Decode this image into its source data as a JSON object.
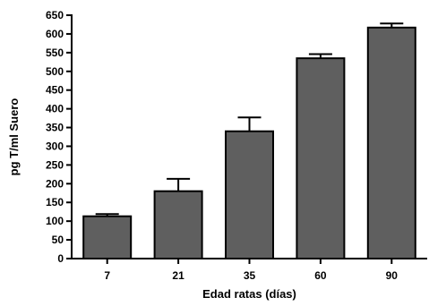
{
  "chart_data": {
    "type": "bar",
    "title": "",
    "xlabel": "Edad ratas (días)",
    "ylabel": "pg T/ml Suero",
    "ylim": [
      0,
      650
    ],
    "yticks": [
      0,
      50,
      100,
      150,
      200,
      250,
      300,
      350,
      400,
      450,
      500,
      550,
      600,
      650
    ],
    "categories": [
      "7",
      "21",
      "35",
      "60",
      "90"
    ],
    "values": [
      113,
      180,
      340,
      535,
      617
    ],
    "errors": [
      6,
      33,
      37,
      11,
      11
    ],
    "grid": false,
    "legend": "none",
    "bar_color": "#5f5f5f"
  }
}
